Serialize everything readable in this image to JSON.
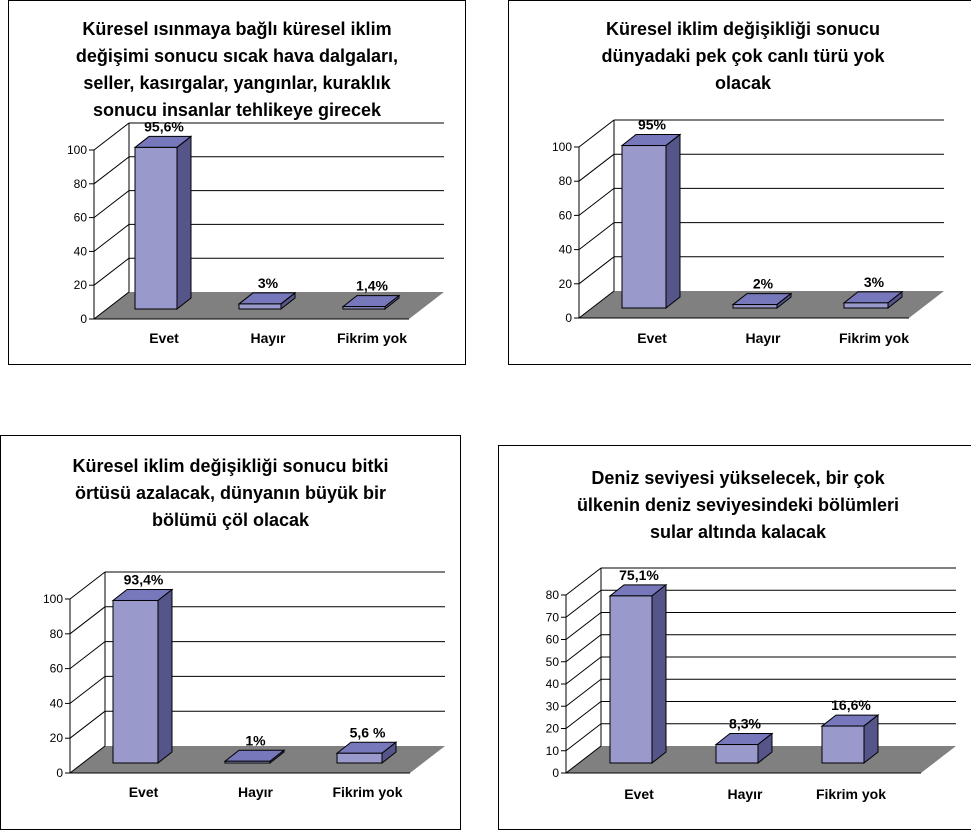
{
  "chart_data": [
    {
      "type": "bar",
      "title": "Küresel ısınmaya bağlı küresel iklim\ndeğişimi sonucu sıcak hava dalgaları,\nseller, kasırgalar, yangınlar, kuraklık\nsonucu insanlar tehlikeye girecek",
      "categories": [
        "Evet",
        "Hayır",
        "Fikrim yok"
      ],
      "values": [
        95.6,
        3,
        1.4
      ],
      "data_labels": [
        "95,6%",
        "3%",
        "1,4%"
      ],
      "yticks": [
        "0",
        "20",
        "40",
        "60",
        "80",
        "100"
      ],
      "ylim": [
        0,
        100
      ],
      "grid": true,
      "xlabel": "",
      "ylabel": ""
    },
    {
      "type": "bar",
      "title": "Küresel iklim değişikliği sonucu\ndünyadaki pek çok canlı türü yok\nolacak",
      "categories": [
        "Evet",
        "Hayır",
        "Fikrim yok"
      ],
      "values": [
        95,
        2,
        3
      ],
      "data_labels": [
        "95%",
        "2%",
        "3%"
      ],
      "yticks": [
        "0",
        "20",
        "40",
        "60",
        "80",
        "100"
      ],
      "ylim": [
        0,
        100
      ],
      "grid": true,
      "xlabel": "",
      "ylabel": ""
    },
    {
      "type": "bar",
      "title": "Küresel iklim değişikliği sonucu bitki\nörtüsü azalacak, dünyanın büyük bir\nbölümü çöl olacak",
      "categories": [
        "Evet",
        "Hayır",
        "Fikrim yok"
      ],
      "values": [
        93.4,
        1,
        5.6
      ],
      "data_labels": [
        "93,4%",
        "1%",
        "5,6 %"
      ],
      "yticks": [
        "0",
        "20",
        "40",
        "60",
        "80",
        "100"
      ],
      "ylim": [
        0,
        100
      ],
      "grid": true,
      "xlabel": "",
      "ylabel": ""
    },
    {
      "type": "bar",
      "title": "Deniz seviyesi yükselecek, bir çok\nülkenin deniz seviyesindeki bölümleri\nsular altında kalacak",
      "categories": [
        "Evet",
        "Hayır",
        "Fikrim yok"
      ],
      "values": [
        75.1,
        8.3,
        16.6
      ],
      "data_labels": [
        "75,1%",
        "8,3%",
        "16,6%"
      ],
      "yticks": [
        "0",
        "10",
        "20",
        "30",
        "40",
        "50",
        "60",
        "70",
        "80"
      ],
      "ylim": [
        0,
        80
      ],
      "grid": true,
      "xlabel": "",
      "ylabel": ""
    }
  ],
  "colors": {
    "bar_front": "#9999cc",
    "bar_side": "#55558a",
    "bar_top": "#7777bb",
    "floor": "#808080",
    "grid": "#000000"
  }
}
